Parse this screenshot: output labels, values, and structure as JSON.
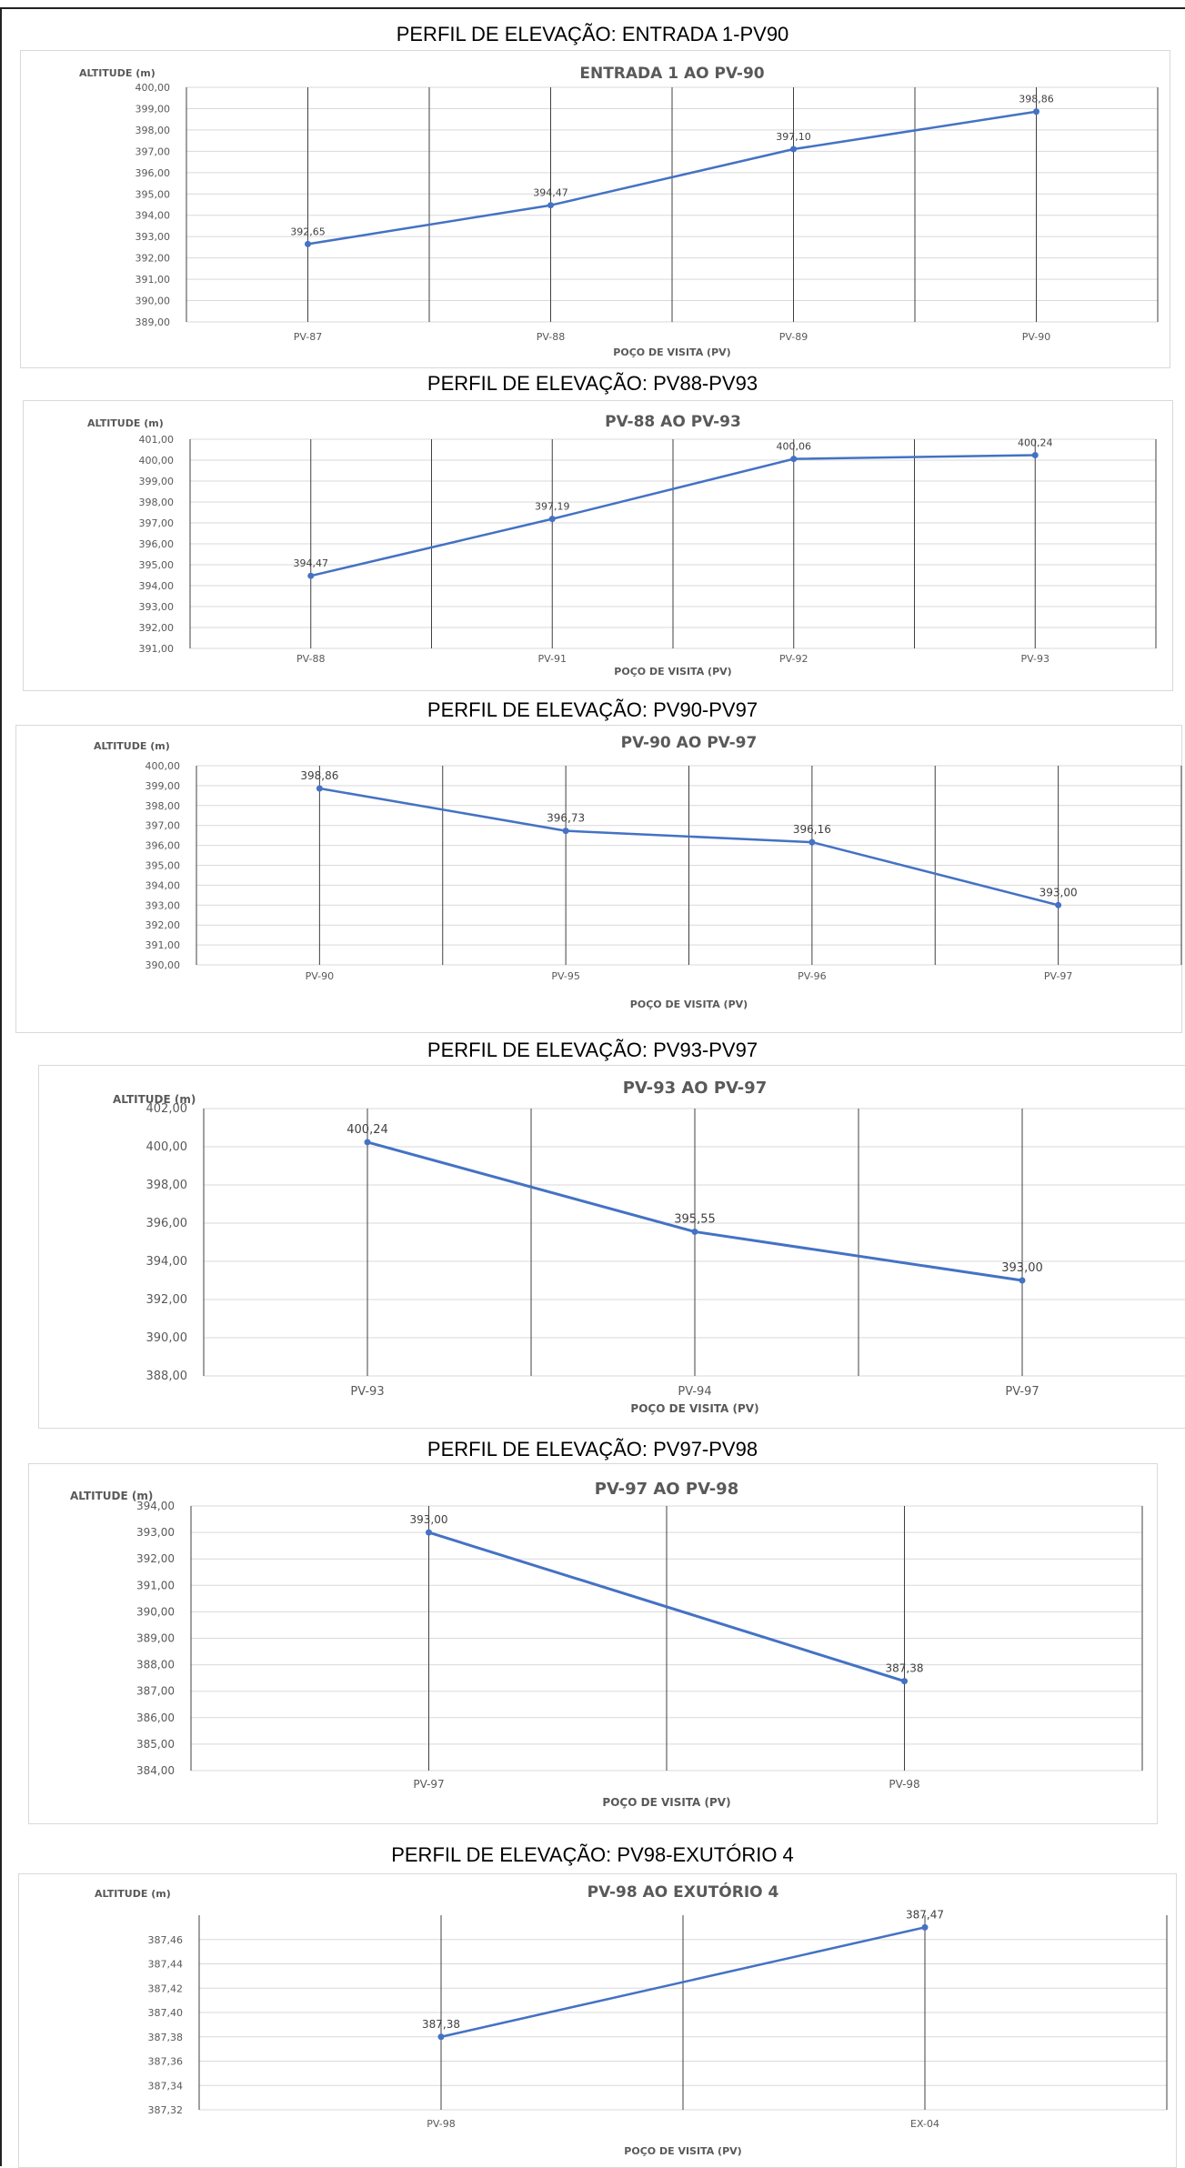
{
  "page": {
    "headings": [
      "PERFIL DE ELEVAÇÃO: ENTRADA 1-PV90",
      "PERFIL DE ELEVAÇÃO: PV88-PV93",
      "PERFIL DE ELEVAÇÃO: PV90-PV97",
      "PERFIL DE ELEVAÇÃO: PV93-PV97",
      "PERFIL DE ELEVAÇÃO: PV97-PV98",
      "PERFIL DE ELEVAÇÃO: PV98-EXUTÓRIO 4"
    ]
  },
  "colors": {
    "series": "#4472C4",
    "grid": "#d9d9d9",
    "divider": "#404040",
    "text": "#595959"
  },
  "chart_data": [
    {
      "type": "line",
      "title": "ENTRADA 1 AO PV-90",
      "ylabel": "ALTITUDE  (m)",
      "xlabel": "POÇO DE VISITA  (PV)",
      "categories": [
        "PV-87",
        "PV-88",
        "PV-89",
        "PV-90"
      ],
      "values": [
        392.65,
        394.47,
        397.1,
        398.86
      ],
      "data_labels": [
        "392,65",
        "394,47",
        "397,10",
        "398,86"
      ],
      "ylim": [
        389,
        400
      ],
      "ytick_step": 1,
      "ytick_labels": [
        "389,00",
        "390,00",
        "391,00",
        "392,00",
        "393,00",
        "394,00",
        "395,00",
        "396,00",
        "397,00",
        "398,00",
        "399,00",
        "400,00"
      ],
      "grid": true,
      "legend": "none"
    },
    {
      "type": "line",
      "title": "PV-88 AO PV-93",
      "ylabel": "ALTITUDE  (m)",
      "xlabel": "POÇO DE VISITA  (PV)",
      "categories": [
        "PV-88",
        "PV-91",
        "PV-92",
        "PV-93"
      ],
      "values": [
        394.47,
        397.19,
        400.06,
        400.24
      ],
      "data_labels": [
        "394,47",
        "397,19",
        "400,06",
        "400,24"
      ],
      "ylim": [
        391,
        401
      ],
      "ytick_step": 1,
      "ytick_labels": [
        "391,00",
        "392,00",
        "393,00",
        "394,00",
        "395,00",
        "396,00",
        "397,00",
        "398,00",
        "399,00",
        "400,00",
        "401,00"
      ],
      "grid": true,
      "legend": "none"
    },
    {
      "type": "line",
      "title": "PV-90 AO PV-97",
      "ylabel": "ALTITUDE  (m)",
      "xlabel": "POÇO DE VISITA  (PV)",
      "categories": [
        "PV-90",
        "PV-95",
        "PV-96",
        "PV-97"
      ],
      "values": [
        398.86,
        396.73,
        396.16,
        393.0
      ],
      "data_labels": [
        "398,86",
        "396,73",
        "396,16",
        "393,00"
      ],
      "ylim": [
        390,
        400
      ],
      "ytick_step": 1,
      "ytick_labels": [
        "390,00",
        "391,00",
        "392,00",
        "393,00",
        "394,00",
        "395,00",
        "396,00",
        "397,00",
        "398,00",
        "399,00",
        "400,00"
      ],
      "grid": true,
      "legend": "none"
    },
    {
      "type": "line",
      "title": "PV-93 AO PV-97",
      "ylabel": "ALTITUDE  (m)",
      "xlabel": "POÇO DE VISITA  (PV)",
      "categories": [
        "PV-93",
        "PV-94",
        "PV-97"
      ],
      "values": [
        400.24,
        395.55,
        393.0
      ],
      "data_labels": [
        "400,24",
        "395,55",
        "393,00"
      ],
      "ylim": [
        388,
        402
      ],
      "ytick_step": 2,
      "ytick_labels": [
        "388,00",
        "390,00",
        "392,00",
        "394,00",
        "396,00",
        "398,00",
        "400,00",
        "402,00"
      ],
      "grid": true,
      "legend": "none"
    },
    {
      "type": "line",
      "title": "PV-97 AO PV-98",
      "ylabel": "ALTITUDE  (m)",
      "xlabel": "POÇO DE VISITA  (PV)",
      "categories": [
        "PV-97",
        "PV-98"
      ],
      "values": [
        393.0,
        387.38
      ],
      "data_labels": [
        "393,00",
        "387,38"
      ],
      "ylim": [
        384,
        394
      ],
      "ytick_step": 1,
      "ytick_labels": [
        "384,00",
        "385,00",
        "386,00",
        "387,00",
        "388,00",
        "389,00",
        "390,00",
        "391,00",
        "392,00",
        "393,00",
        "394,00"
      ],
      "grid": true,
      "legend": "none"
    },
    {
      "type": "line",
      "title": "PV-98 AO EXUTÓRIO 4",
      "ylabel": "ALTITUDE  (m)",
      "xlabel": "POÇO DE VISITA  (PV)",
      "categories": [
        "PV-98",
        "EX-04"
      ],
      "values": [
        387.38,
        387.47
      ],
      "data_labels": [
        "387,38",
        "387,47"
      ],
      "ylim": [
        387.32,
        387.48
      ],
      "ytick_step": 0.02,
      "ytick_labels": [
        "387,32",
        "387,34",
        "387,36",
        "387,38",
        "387,40",
        "387,42",
        "387,44",
        "387,46"
      ],
      "grid": true,
      "legend": "none"
    }
  ]
}
